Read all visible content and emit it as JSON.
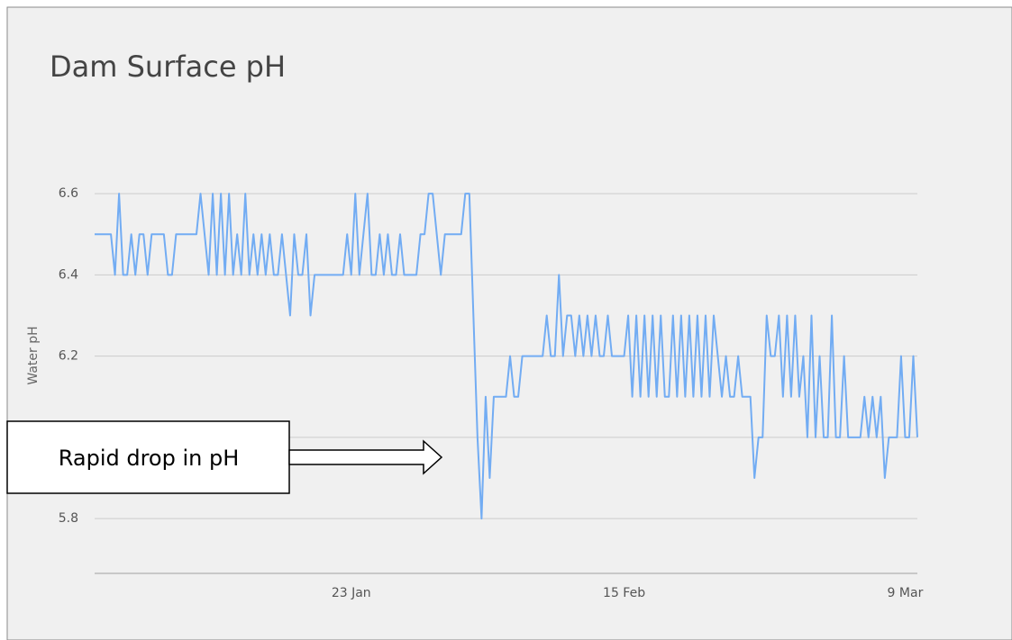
{
  "chart_data": {
    "type": "line",
    "title": "Dam Surface pH",
    "ylabel": "Water pH",
    "annotation": "Rapid drop in pH",
    "color": "#72acf3",
    "grid": true,
    "ylim": [
      5.665,
      6.7
    ],
    "yticks": [
      5.8,
      {
        "value": 6,
        "label": "6.0"
      },
      6.2,
      6.4,
      6.6
    ],
    "categories": [
      null,
      null,
      null,
      null,
      null,
      null,
      null,
      null,
      null,
      null,
      null,
      null,
      null,
      null,
      null,
      null,
      null,
      null,
      null,
      null,
      null,
      null,
      null,
      null,
      null,
      null,
      null,
      null,
      null,
      null,
      null,
      null,
      null,
      null,
      null,
      null,
      null,
      null,
      null,
      null,
      null,
      null,
      null,
      null,
      null,
      null,
      null,
      null,
      null,
      null,
      null,
      null,
      null,
      null,
      null,
      null,
      null,
      null,
      null,
      null,
      null,
      null,
      null,
      "23 Jan",
      null,
      null,
      null,
      null,
      null,
      null,
      null,
      null,
      null,
      null,
      null,
      null,
      null,
      null,
      null,
      null,
      null,
      null,
      null,
      null,
      null,
      null,
      null,
      null,
      null,
      null,
      null,
      null,
      null,
      null,
      null,
      null,
      null,
      null,
      null,
      null,
      null,
      null,
      null,
      null,
      null,
      null,
      null,
      null,
      null,
      null,
      null,
      null,
      null,
      null,
      null,
      null,
      null,
      null,
      null,
      null,
      null,
      null,
      null,
      null,
      null,
      null,
      null,
      null,
      null,
      null,
      "15 Feb",
      null,
      null,
      null,
      null,
      null,
      null,
      null,
      null,
      null,
      null,
      null,
      null,
      null,
      null,
      null,
      null,
      null,
      null,
      null,
      null,
      null,
      null,
      null,
      null,
      null,
      null,
      null,
      null,
      null,
      null,
      null,
      null,
      null,
      null,
      null,
      null,
      null,
      null,
      null,
      null,
      null,
      null,
      null,
      null,
      null,
      null,
      null,
      null,
      null,
      null,
      null,
      null,
      null,
      null,
      null,
      null,
      null,
      null,
      null,
      null,
      null,
      null,
      null,
      null,
      null,
      null,
      null,
      null,
      "9 Mar",
      null,
      null,
      null
    ],
    "values": [
      6.5,
      6.5,
      6.5,
      6.5,
      6.5,
      6.4,
      6.6,
      6.4,
      6.4,
      6.5,
      6.4,
      6.5,
      6.5,
      6.4,
      6.5,
      6.5,
      6.5,
      6.5,
      6.4,
      6.4,
      6.5,
      6.5,
      6.5,
      6.5,
      6.5,
      6.5,
      6.6,
      6.5,
      6.4,
      6.6,
      6.4,
      6.6,
      6.4,
      6.6,
      6.4,
      6.5,
      6.4,
      6.6,
      6.4,
      6.5,
      6.4,
      6.5,
      6.4,
      6.5,
      6.4,
      6.4,
      6.5,
      6.4,
      6.3,
      6.5,
      6.4,
      6.4,
      6.5,
      6.3,
      6.4,
      6.4,
      6.4,
      6.4,
      6.4,
      6.4,
      6.4,
      6.4,
      6.5,
      6.4,
      6.6,
      6.4,
      6.5,
      6.6,
      6.4,
      6.4,
      6.5,
      6.4,
      6.5,
      6.4,
      6.4,
      6.5,
      6.4,
      6.4,
      6.4,
      6.4,
      6.5,
      6.5,
      6.6,
      6.6,
      6.5,
      6.4,
      6.5,
      6.5,
      6.5,
      6.5,
      6.5,
      6.6,
      6.6,
      6.3,
      6.0,
      5.8,
      6.1,
      5.9,
      6.1,
      6.1,
      6.1,
      6.1,
      6.2,
      6.1,
      6.1,
      6.2,
      6.2,
      6.2,
      6.2,
      6.2,
      6.2,
      6.3,
      6.2,
      6.2,
      6.4,
      6.2,
      6.3,
      6.3,
      6.2,
      6.3,
      6.2,
      6.3,
      6.2,
      6.3,
      6.2,
      6.2,
      6.3,
      6.2,
      6.2,
      6.2,
      6.2,
      6.3,
      6.1,
      6.3,
      6.1,
      6.3,
      6.1,
      6.3,
      6.1,
      6.3,
      6.1,
      6.1,
      6.3,
      6.1,
      6.3,
      6.1,
      6.3,
      6.1,
      6.3,
      6.1,
      6.3,
      6.1,
      6.3,
      6.2,
      6.1,
      6.2,
      6.1,
      6.1,
      6.2,
      6.1,
      6.1,
      6.1,
      5.9,
      6.0,
      6.0,
      6.3,
      6.2,
      6.2,
      6.3,
      6.1,
      6.3,
      6.1,
      6.3,
      6.1,
      6.2,
      6.0,
      6.3,
      6.0,
      6.2,
      6.0,
      6.0,
      6.3,
      6.0,
      6.0,
      6.2,
      6.0,
      6.0,
      6.0,
      6.0,
      6.1,
      6.0,
      6.1,
      6.0,
      6.1,
      5.9,
      6.0,
      6.0,
      6.0,
      6.2,
      6.0,
      6.0,
      6.2,
      6.0
    ]
  }
}
